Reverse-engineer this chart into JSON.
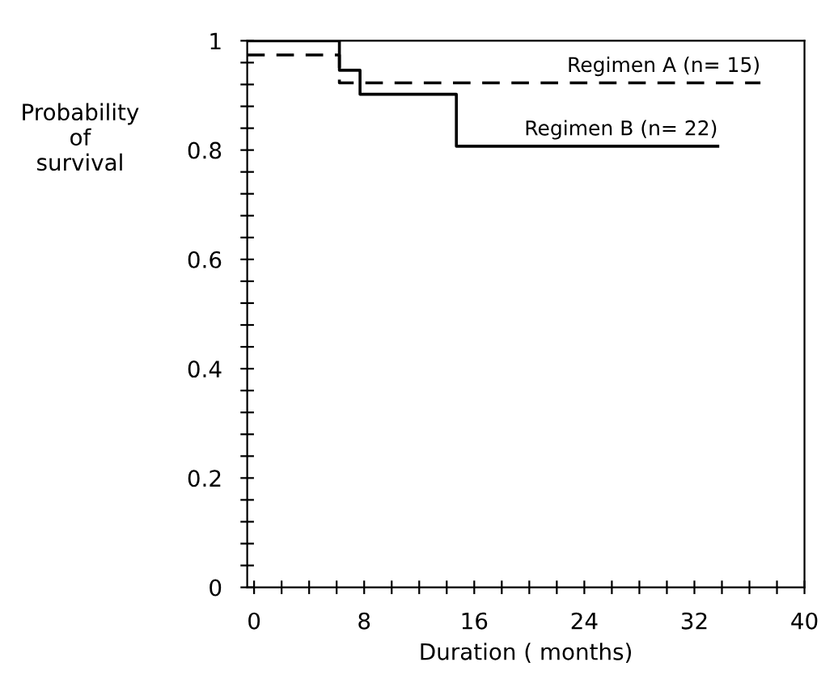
{
  "chart_data": {
    "type": "step",
    "xlabel": "Duration ( months)",
    "ylabel": "Probability\nof\nsurvival",
    "xlim": [
      -0.5,
      40
    ],
    "ylim": [
      0,
      1
    ],
    "xticks": [
      0,
      {
        "value": 2,
        "label": null
      },
      {
        "value": 4,
        "label": null
      },
      {
        "value": 6,
        "label": null
      },
      8,
      {
        "value": 10,
        "label": null
      },
      {
        "value": 12,
        "label": null
      },
      {
        "value": 14,
        "label": null
      },
      16,
      {
        "value": 18,
        "label": null
      },
      {
        "value": 20,
        "label": null
      },
      {
        "value": 22,
        "label": null
      },
      24,
      {
        "value": 26,
        "label": null
      },
      {
        "value": 28,
        "label": null
      },
      {
        "value": 30,
        "label": null
      },
      32,
      {
        "value": 34,
        "label": null
      },
      {
        "value": 36,
        "label": null
      },
      {
        "value": 38,
        "label": null
      },
      40
    ],
    "yticks": [
      0,
      {
        "value": 0.04,
        "label": null
      },
      {
        "value": 0.08,
        "label": null
      },
      {
        "value": 0.12,
        "label": null
      },
      {
        "value": 0.16,
        "label": null
      },
      0.2,
      {
        "value": 0.24,
        "label": null
      },
      {
        "value": 0.28,
        "label": null
      },
      {
        "value": 0.32,
        "label": null
      },
      {
        "value": 0.36,
        "label": null
      },
      0.4,
      {
        "value": 0.44,
        "label": null
      },
      {
        "value": 0.48,
        "label": null
      },
      {
        "value": 0.52,
        "label": null
      },
      {
        "value": 0.56,
        "label": null
      },
      0.6,
      {
        "value": 0.64,
        "label": null
      },
      {
        "value": 0.68,
        "label": null
      },
      {
        "value": 0.72,
        "label": null
      },
      {
        "value": 0.76,
        "label": null
      },
      0.8,
      {
        "value": 0.84,
        "label": null
      },
      {
        "value": 0.88,
        "label": null
      },
      {
        "value": 0.92,
        "label": null
      },
      {
        "value": 0.96,
        "label": null
      },
      1
    ],
    "series": [
      {
        "name": "Regimen A (n= 15)",
        "color": "#000000",
        "line_style": "dashed",
        "x": [
          -0.5,
          6.2,
          36.8
        ],
        "values": [
          0.974,
          0.923,
          0.923
        ]
      },
      {
        "name": "Regimen B (n= 22)",
        "color": "#000000",
        "line_style": "solid",
        "x": [
          -0.5,
          6.2,
          7.7,
          14.7,
          33.7
        ],
        "values": [
          1.0,
          0.946,
          0.902,
          0.807,
          0.807
        ]
      }
    ]
  }
}
